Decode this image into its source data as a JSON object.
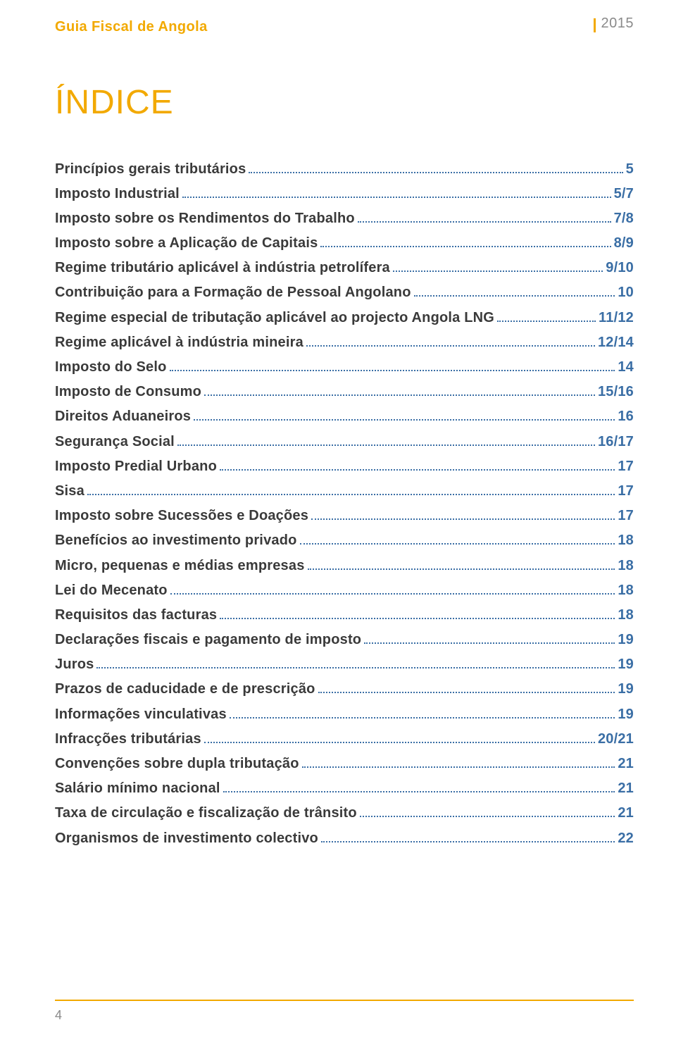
{
  "header": {
    "title": "Guia Fiscal de Angola",
    "year": "2015"
  },
  "indice_title": "ÍNDICE",
  "colors": {
    "accent": "#f2a900",
    "link": "#3a6ea5",
    "text": "#3a3a3a",
    "muted": "#8a8a8a",
    "background": "#ffffff"
  },
  "typography": {
    "header_fontsize": 20,
    "title_fontsize": 48,
    "row_fontsize": 20,
    "footer_fontsize": 18
  },
  "toc": [
    {
      "label": "Princípios gerais tributários",
      "page": "5"
    },
    {
      "label": "Imposto Industrial",
      "page": "5/7"
    },
    {
      "label": "Imposto sobre os Rendimentos do Trabalho",
      "page": "7/8"
    },
    {
      "label": "Imposto sobre a Aplicação de Capitais",
      "page": "8/9"
    },
    {
      "label": "Regime tributário aplicável à indústria petrolífera",
      "page": "9/10"
    },
    {
      "label": "Contribuição para a Formação de Pessoal Angolano",
      "page": "10"
    },
    {
      "label": "Regime especial de tributação aplicável ao projecto Angola LNG",
      "page": "11/12"
    },
    {
      "label": "Regime aplicável à indústria mineira",
      "page": "12/14"
    },
    {
      "label": "Imposto do Selo",
      "page": "14"
    },
    {
      "label": "Imposto de Consumo",
      "page": "15/16"
    },
    {
      "label": "Direitos Aduaneiros",
      "page": "16"
    },
    {
      "label": "Segurança Social",
      "page": "16/17"
    },
    {
      "label": "Imposto Predial Urbano",
      "page": "17"
    },
    {
      "label": "Sisa",
      "page": "17"
    },
    {
      "label": "Imposto sobre Sucessões e Doações",
      "page": "17"
    },
    {
      "label": "Benefícios ao investimento privado",
      "page": "18"
    },
    {
      "label": "Micro, pequenas e médias empresas",
      "page": "18"
    },
    {
      "label": "Lei do Mecenato",
      "page": "18"
    },
    {
      "label": "Requisitos das facturas",
      "page": "18"
    },
    {
      "label": "Declarações fiscais e pagamento de imposto",
      "page": "19"
    },
    {
      "label": "Juros",
      "page": "19"
    },
    {
      "label": "Prazos de caducidade e de prescrição",
      "page": "19"
    },
    {
      "label": "Informações vinculativas",
      "page": "19"
    },
    {
      "label": "Infracções tributárias",
      "page": "20/21"
    },
    {
      "label": "Convenções sobre dupla tributação",
      "page": "21"
    },
    {
      "label": "Salário mínimo nacional",
      "page": "21"
    },
    {
      "label": "Taxa de circulação e fiscalização de trânsito",
      "page": "21"
    },
    {
      "label": "Organismos de investimento colectivo",
      "page": "22"
    }
  ],
  "footer": {
    "page_number": "4"
  }
}
